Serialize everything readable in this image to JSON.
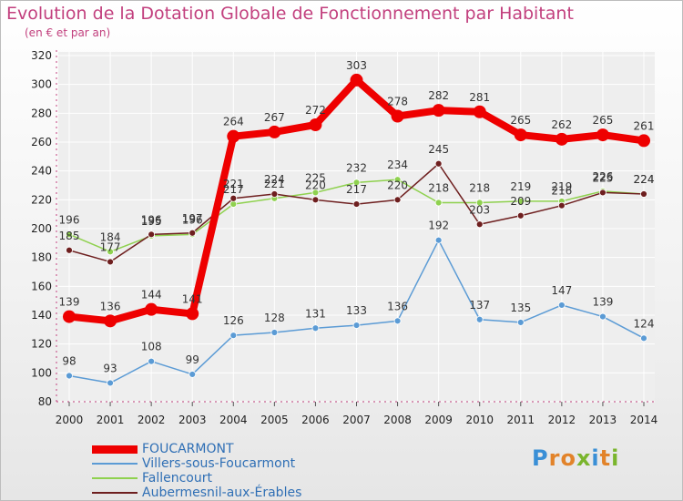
{
  "title": "Evolution de la Dotation Globale de Fonctionnement par Habitant",
  "subtitle": "(en € et par an)",
  "colors": {
    "title": "#c2407e",
    "axis": "#c2407e",
    "grid": "#ffffff",
    "plot_bg": "#eeeeee"
  },
  "logo": {
    "text": "Proxiti",
    "letters": [
      {
        "ch": "P",
        "color": "#3a8fd6"
      },
      {
        "ch": "r",
        "color": "#e2832a"
      },
      {
        "ch": "o",
        "color": "#e2832a"
      },
      {
        "ch": "x",
        "color": "#7ab52d"
      },
      {
        "ch": "i",
        "color": "#3a8fd6"
      },
      {
        "ch": "t",
        "color": "#e2832a"
      },
      {
        "ch": "i",
        "color": "#7ab52d"
      }
    ]
  },
  "chart_data": {
    "type": "line",
    "title": "Evolution de la Dotation Globale de Fonctionnement par Habitant",
    "subtitle": "(en € et par an)",
    "x": [
      "2000",
      "2001",
      "2002",
      "2003",
      "2004",
      "2005",
      "2006",
      "2007",
      "2008",
      "2009",
      "2010",
      "2011",
      "2012",
      "2013",
      "2014"
    ],
    "ylim": [
      80,
      320
    ],
    "yticks": [
      80,
      100,
      120,
      140,
      160,
      180,
      200,
      220,
      240,
      260,
      280,
      300,
      320
    ],
    "grid": true,
    "legend_position": "bottom-left",
    "series": [
      {
        "name": "FOUCARMONT",
        "color": "#ee0000",
        "bold": true,
        "values": [
          139,
          136,
          144,
          141,
          264,
          267,
          272,
          303,
          278,
          282,
          281,
          265,
          262,
          265,
          261
        ]
      },
      {
        "name": "Villers-sous-Foucarmont",
        "color": "#5b9bd5",
        "bold": false,
        "values": [
          98,
          93,
          108,
          99,
          126,
          128,
          131,
          133,
          136,
          192,
          137,
          135,
          147,
          139,
          124
        ]
      },
      {
        "name": "Fallencourt",
        "color": "#8fd14f",
        "bold": false,
        "values": [
          196,
          184,
          195,
          196,
          217,
          221,
          225,
          232,
          234,
          218,
          218,
          219,
          219,
          226,
          224
        ]
      },
      {
        "name": "Aubermesnil-aux-Érables",
        "color": "#6e1f1f",
        "bold": false,
        "values": [
          185,
          177,
          196,
          197,
          221,
          224,
          220,
          217,
          220,
          245,
          203,
          209,
          216,
          225,
          224
        ]
      }
    ]
  }
}
